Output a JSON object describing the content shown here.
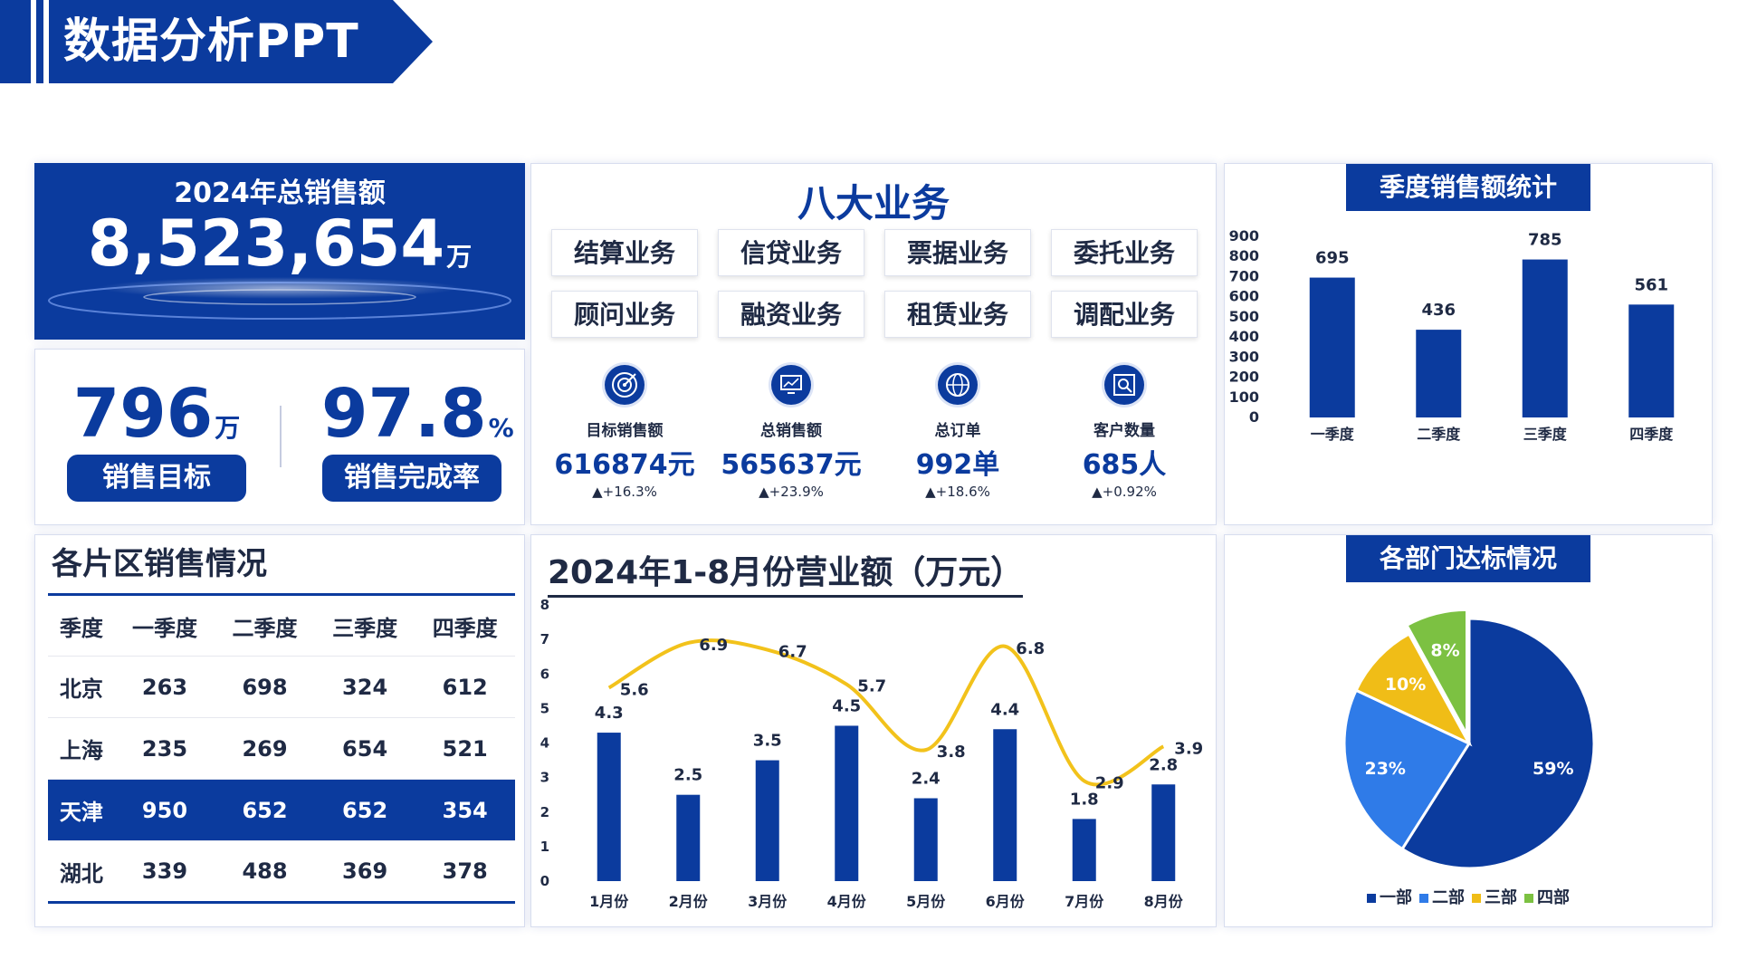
{
  "header": {
    "title": "数据分析PPT"
  },
  "total_sales": {
    "title": "2024年总销售额",
    "value": "8,523,654",
    "unit": "万"
  },
  "kpis": {
    "target": {
      "value": "796",
      "unit": "万",
      "label": "销售目标"
    },
    "completion": {
      "value": "97.8",
      "unit": "%",
      "label": "销售完成率"
    }
  },
  "business": {
    "title": "八大业务",
    "items": [
      "结算业务",
      "信贷业务",
      "票据业务",
      "委托业务",
      "顾问业务",
      "融资业务",
      "租赁业务",
      "调配业务"
    ],
    "stats": [
      {
        "icon": "target-icon",
        "label": "目标销售额",
        "value": "616874元",
        "change": "▲+16.3%"
      },
      {
        "icon": "monitor-chart-icon",
        "label": "总销售额",
        "value": "565637元",
        "change": "▲+23.9%"
      },
      {
        "icon": "globe-icon",
        "label": "总订单",
        "value": "992单",
        "change": "▲+18.6%"
      },
      {
        "icon": "customer-search-icon",
        "label": "客户数量",
        "value": "685人",
        "change": "▲+0.92%"
      }
    ]
  },
  "quarterly": {
    "title": "季度销售额统计"
  },
  "regions": {
    "title": "各片区销售情况",
    "headers": [
      "季度",
      "一季度",
      "二季度",
      "三季度",
      "四季度"
    ],
    "rows": [
      [
        "北京",
        "263",
        "698",
        "324",
        "612"
      ],
      [
        "上海",
        "235",
        "269",
        "654",
        "521"
      ],
      [
        "天津",
        "950",
        "652",
        "652",
        "354"
      ],
      [
        "湖北",
        "339",
        "488",
        "369",
        "378"
      ]
    ]
  },
  "monthly": {
    "title": "2024年1-8月份营业额（万元）"
  },
  "departments": {
    "title": "各部门达标情况"
  },
  "colors": {
    "primary": "#0b3b9e",
    "line": "#f2c21b",
    "dept2": "#2f7be8",
    "dept3": "#f0bd17",
    "dept4": "#7cc142"
  },
  "chart_data": [
    {
      "type": "bar",
      "title": "季度销售额统计",
      "categories": [
        "一季度",
        "二季度",
        "三季度",
        "四季度"
      ],
      "values": [
        695,
        436,
        785,
        561
      ],
      "ylim": [
        0,
        900
      ],
      "yticks": [
        0,
        100,
        200,
        300,
        400,
        500,
        600,
        700,
        800,
        900
      ],
      "grid": false
    },
    {
      "type": "bar",
      "title": "2024年1-8月份营业额（万元）",
      "categories": [
        "1月份",
        "2月份",
        "3月份",
        "4月份",
        "5月份",
        "6月份",
        "7月份",
        "8月份"
      ],
      "series": [
        {
          "type": "bar",
          "values": [
            4.3,
            2.5,
            3.5,
            4.5,
            2.4,
            4.4,
            1.8,
            2.8
          ]
        },
        {
          "type": "line",
          "values": [
            5.6,
            6.9,
            6.7,
            5.7,
            3.8,
            6.8,
            2.9,
            3.9
          ]
        }
      ],
      "ylim": [
        0,
        8
      ],
      "yticks": [
        0,
        1,
        2,
        3,
        4,
        5,
        6,
        7,
        8
      ],
      "grid": false
    },
    {
      "type": "pie",
      "title": "各部门达标情况",
      "categories": [
        "一部",
        "二部",
        "三部",
        "四部"
      ],
      "values": [
        59,
        23,
        10,
        8
      ],
      "labels": [
        "59%",
        "23%",
        "10%",
        "8%"
      ],
      "legend": "bottom"
    }
  ]
}
